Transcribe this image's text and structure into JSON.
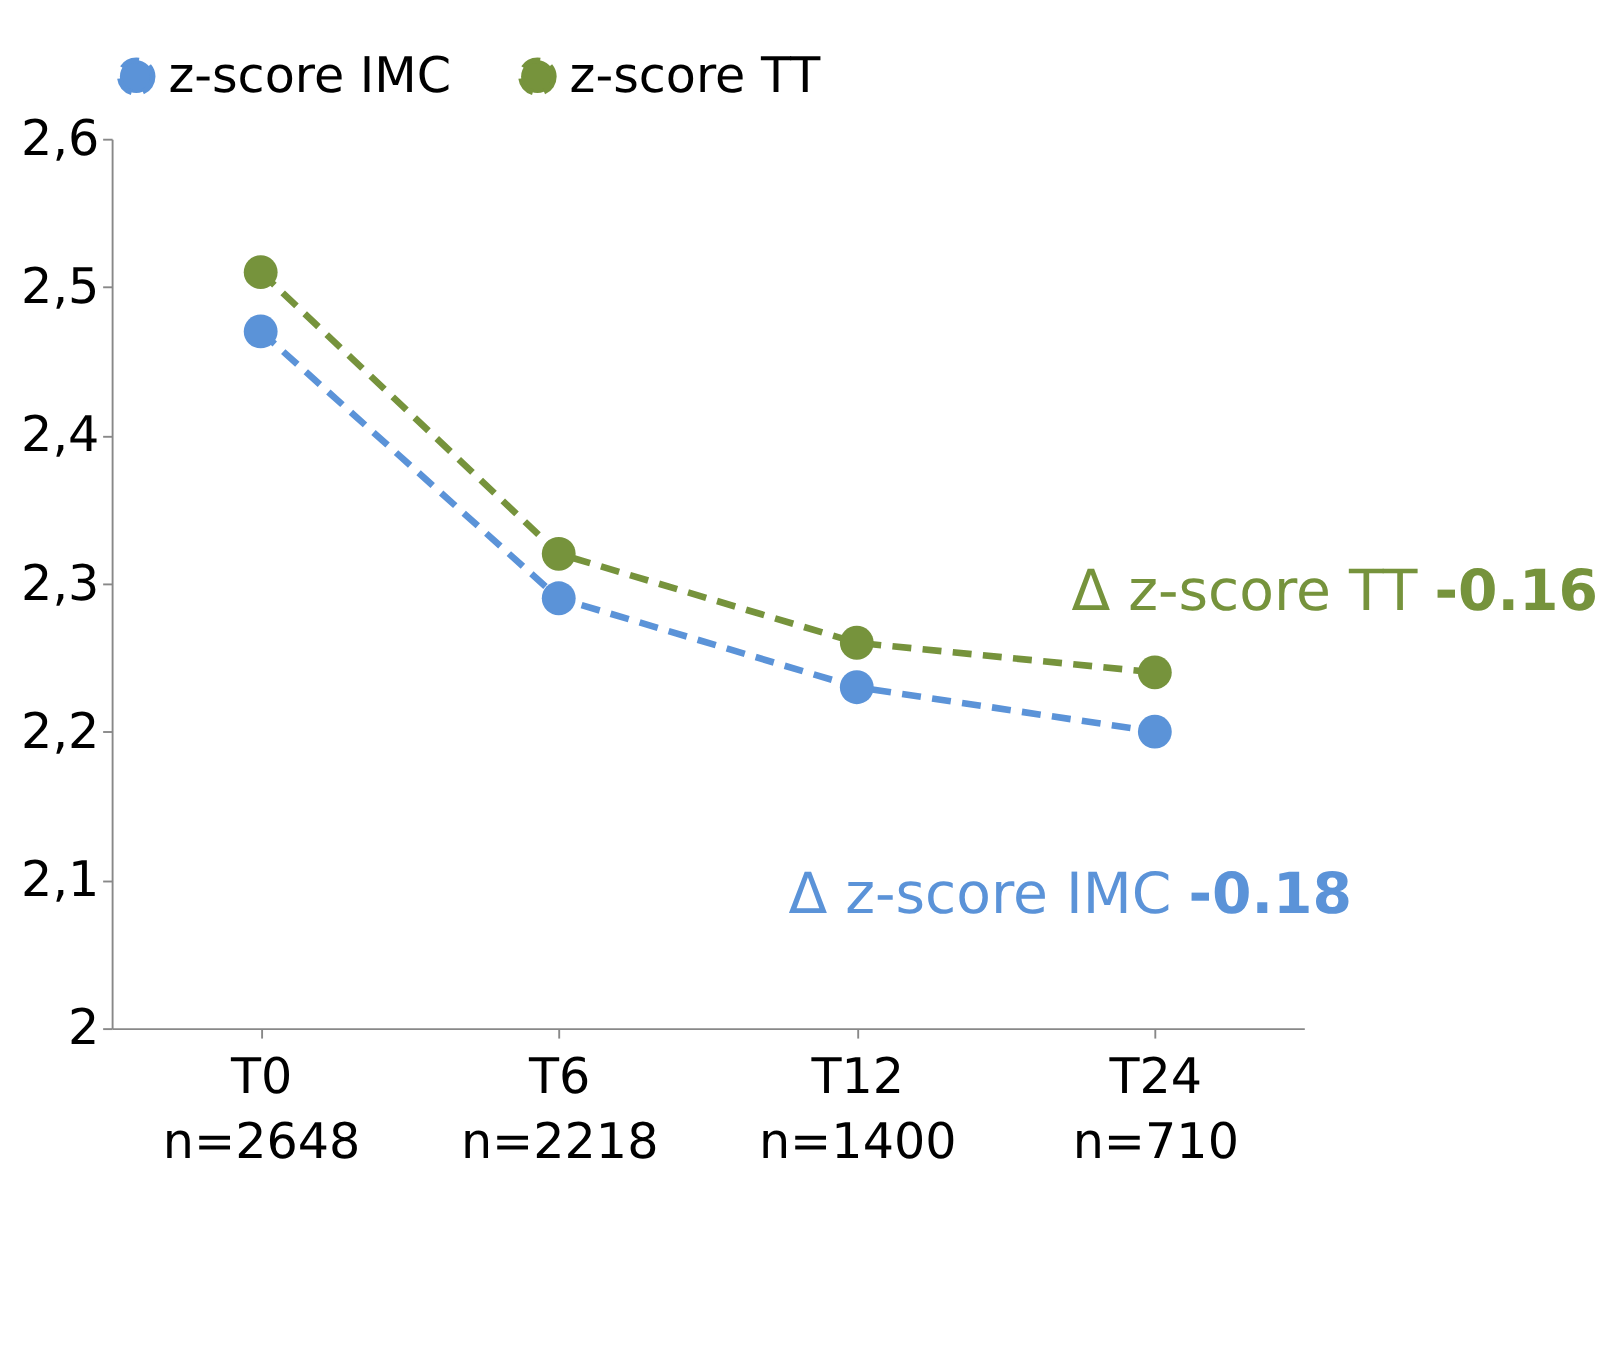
{
  "chart_data": {
    "type": "line",
    "categories": [
      "T0\nn=2648",
      "T6\nn=2218",
      "T12\nn=1400",
      "T24\nn=710"
    ],
    "series": [
      {
        "name": "z-score IMC",
        "color": "#5b93d8",
        "values": [
          2.47,
          2.29,
          2.23,
          2.2
        ]
      },
      {
        "name": "z-score TT",
        "color": "#76933c",
        "values": [
          2.51,
          2.32,
          2.26,
          2.24
        ]
      }
    ],
    "ylim": [
      2,
      2.6
    ],
    "yticks": [
      2,
      {
        "value": 2.1,
        "label": "2,1"
      },
      {
        "value": 2.2,
        "label": "2,2"
      },
      {
        "value": 2.3,
        "label": "2,3"
      },
      {
        "value": 2.4,
        "label": "2,4"
      },
      {
        "value": 2.5,
        "label": "2,5"
      },
      {
        "value": 2.6,
        "label": "2,6"
      }
    ],
    "annotations": [
      "Δ z-score IMC -0.18",
      "Δ z-score TT -0.16"
    ],
    "legend": "top",
    "grid": false,
    "marker": "circle",
    "line_style": "dashed"
  }
}
